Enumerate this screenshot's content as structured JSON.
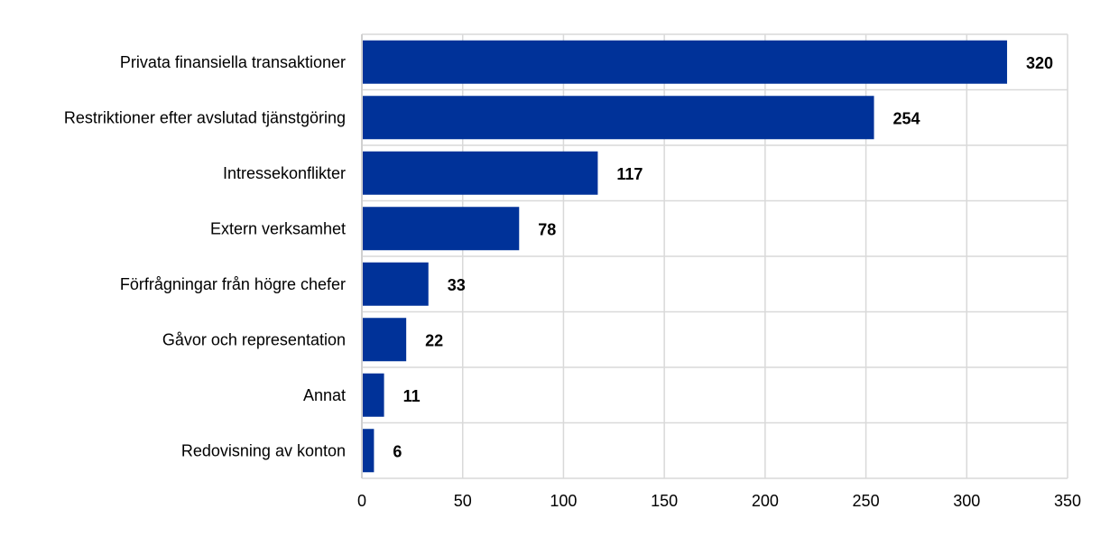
{
  "chart_data": {
    "type": "bar",
    "orientation": "horizontal",
    "title": "",
    "xlabel": "",
    "ylabel": "",
    "categories": [
      "Privata finansiella transaktioner",
      "Restriktioner efter avslutad tjänstgöring",
      "Intressekonflikter",
      "Extern verksamhet",
      "Förfrågningar från högre chefer",
      "Gåvor och representation",
      "Annat",
      "Redovisning av konton"
    ],
    "values": [
      320,
      254,
      117,
      78,
      33,
      22,
      11,
      6
    ],
    "xlim": [
      0,
      350
    ],
    "xticks": [
      0,
      50,
      100,
      150,
      200,
      250,
      300,
      350
    ],
    "grid": true,
    "bar_color": "#003299",
    "grid_color": "#d9d9d9"
  }
}
